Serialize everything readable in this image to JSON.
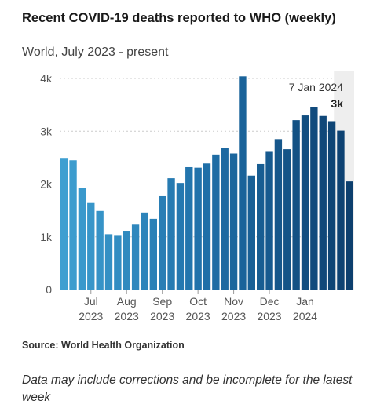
{
  "header": {
    "title": "Recent COVID-19 deaths reported to WHO (weekly)",
    "subtitle": "World, July 2023 - present"
  },
  "footer": {
    "source": "Source: World Health Organization",
    "note": "Data may include corrections and be incomplete for the latest week"
  },
  "colors": {
    "bar_early": "#3e9fd1",
    "bar_mid": "#1f6fa8",
    "bar_late": "#0c3f6e",
    "gridline": "#cccccc",
    "highlight_bg": "#eeeeee"
  },
  "chart_data": {
    "type": "bar",
    "values": [
      2480,
      2450,
      1930,
      1640,
      1490,
      1050,
      1020,
      1100,
      1230,
      1460,
      1340,
      1770,
      2110,
      2020,
      2320,
      2310,
      2390,
      2560,
      2680,
      2580,
      4040,
      2160,
      2380,
      2610,
      2850,
      2660,
      3210,
      3300,
      3460,
      3290,
      3190,
      3010,
      2050
    ],
    "ylim": [
      0,
      4000
    ],
    "yticks": [
      {
        "value": 0,
        "label": "0"
      },
      {
        "value": 1000,
        "label": "1k"
      },
      {
        "value": 2000,
        "label": "2k"
      },
      {
        "value": 3000,
        "label": "3k"
      },
      {
        "value": 4000,
        "label": "4k"
      }
    ],
    "xticks": [
      {
        "index": 3.5,
        "month": "Jul",
        "year": "2023"
      },
      {
        "index": 7.5,
        "month": "Aug",
        "year": "2023"
      },
      {
        "index": 11.5,
        "month": "Sep",
        "year": "2023"
      },
      {
        "index": 15.5,
        "month": "Oct",
        "year": "2023"
      },
      {
        "index": 19.5,
        "month": "Nov",
        "year": "2023"
      },
      {
        "index": 23.5,
        "month": "Dec",
        "year": "2023"
      },
      {
        "index": 27.5,
        "month": "Jan",
        "year": "2024"
      }
    ],
    "highlight": {
      "index": 31,
      "date": "7 Jan 2024",
      "value_label": "3k"
    },
    "grid": true
  }
}
